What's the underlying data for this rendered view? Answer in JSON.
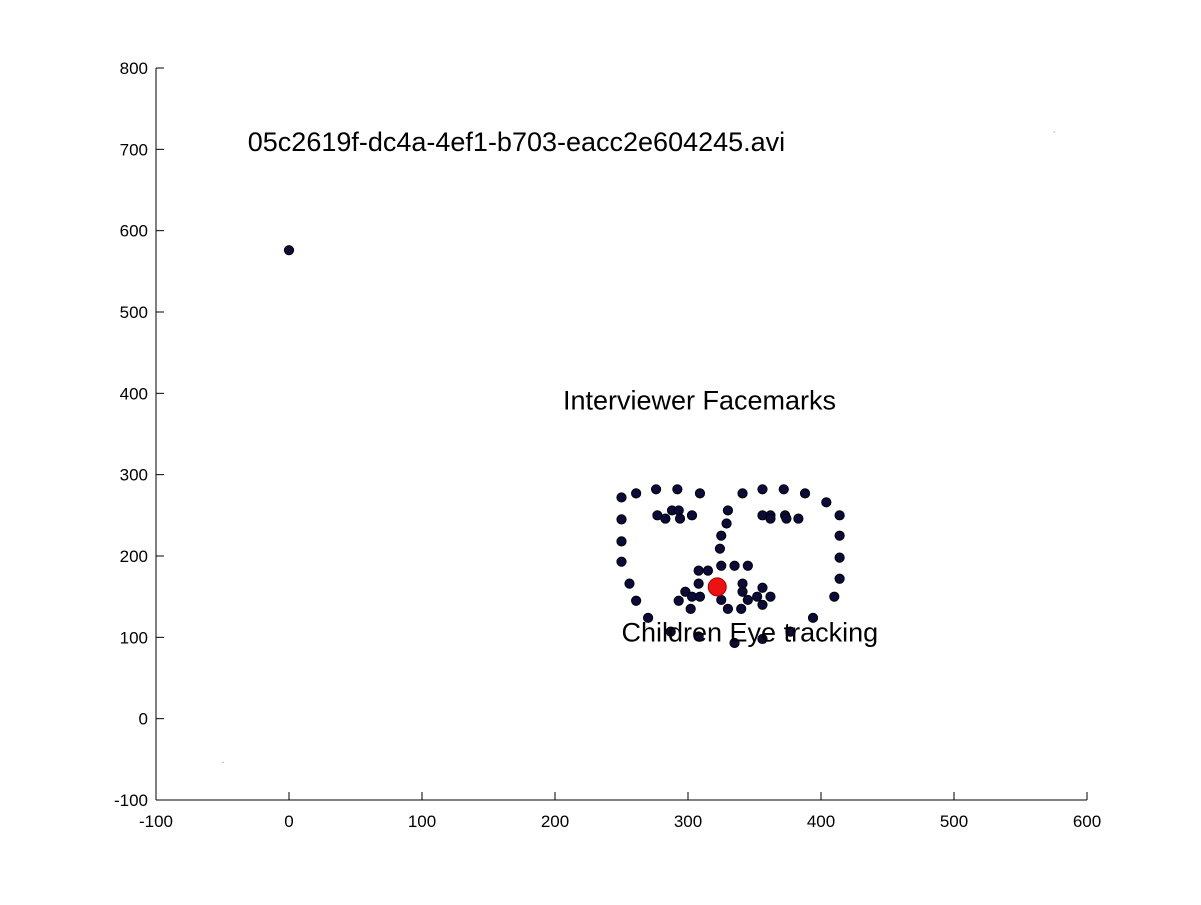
{
  "chart_data": {
    "type": "scatter",
    "title": "",
    "xlabel": "",
    "ylabel": "",
    "xlim": [
      -100,
      600
    ],
    "ylim": [
      -100,
      800
    ],
    "xticks": [
      -100,
      0,
      100,
      200,
      300,
      400,
      500,
      600
    ],
    "yticks": [
      -100,
      0,
      100,
      200,
      300,
      400,
      500,
      600,
      700,
      800
    ],
    "grid": false,
    "legend": "none",
    "annotations": [
      {
        "text": "05c2619f-dc4a-4ef1-b703-eacc2e604245.avi",
        "x": -31,
        "y": 698
      },
      {
        "text": "Interviewer Facemarks",
        "x": 206,
        "y": 380
      },
      {
        "text": "Children Eye tracking",
        "x": 250,
        "y": 95
      }
    ],
    "series": [
      {
        "color": "#0b0b3b",
        "points": [
          [
            0,
            576
          ],
          [
            250,
            272
          ],
          [
            250,
            245
          ],
          [
            250,
            218
          ],
          [
            250,
            193
          ],
          [
            256,
            166
          ],
          [
            261,
            145
          ],
          [
            270,
            124
          ],
          [
            287,
            107
          ],
          [
            308,
            101
          ],
          [
            261,
            277
          ],
          [
            276,
            282
          ],
          [
            292,
            282
          ],
          [
            309,
            277
          ],
          [
            341,
            277
          ],
          [
            356,
            282
          ],
          [
            372,
            282
          ],
          [
            388,
            277
          ],
          [
            404,
            266
          ],
          [
            277,
            250
          ],
          [
            283,
            246
          ],
          [
            288,
            256
          ],
          [
            293,
            256
          ],
          [
            294,
            246
          ],
          [
            303,
            250
          ],
          [
            330,
            256
          ],
          [
            329,
            240
          ],
          [
            325,
            225
          ],
          [
            324,
            209
          ],
          [
            325,
            188
          ],
          [
            356,
            250
          ],
          [
            362,
            250
          ],
          [
            362,
            246
          ],
          [
            373,
            250
          ],
          [
            374,
            246
          ],
          [
            383,
            246
          ],
          [
            308,
            182
          ],
          [
            315,
            182
          ],
          [
            335,
            188
          ],
          [
            345,
            188
          ],
          [
            308,
            166
          ],
          [
            341,
            166
          ],
          [
            356,
            161
          ],
          [
            293,
            145
          ],
          [
            298,
            156
          ],
          [
            303,
            150
          ],
          [
            309,
            150
          ],
          [
            302,
            135
          ],
          [
            325,
            146
          ],
          [
            330,
            135
          ],
          [
            340,
            135
          ],
          [
            341,
            156
          ],
          [
            345,
            146
          ],
          [
            352,
            150
          ],
          [
            356,
            140
          ],
          [
            362,
            150
          ],
          [
            414,
            250
          ],
          [
            414,
            225
          ],
          [
            414,
            198
          ],
          [
            414,
            172
          ],
          [
            410,
            150
          ],
          [
            394,
            124
          ],
          [
            377,
            107
          ],
          [
            356,
            98
          ],
          [
            335,
            93
          ]
        ]
      },
      {
        "color": "#ee1111",
        "points": [
          [
            322,
            162
          ]
        ]
      }
    ],
    "stray_marks": [
      [
        575,
        722
      ],
      [
        -50,
        -53
      ]
    ]
  }
}
